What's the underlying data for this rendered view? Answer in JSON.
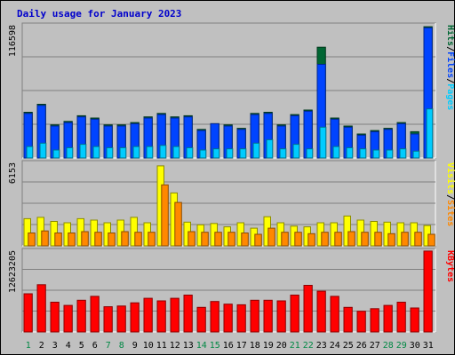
{
  "chart_data": {
    "type": "bar",
    "title": "Daily usage for January 2023",
    "categories": [
      "1",
      "2",
      "3",
      "4",
      "5",
      "6",
      "7",
      "8",
      "9",
      "10",
      "11",
      "12",
      "13",
      "14",
      "15",
      "16",
      "17",
      "18",
      "19",
      "20",
      "21",
      "22",
      "23",
      "24",
      "25",
      "26",
      "27",
      "28",
      "29",
      "30",
      "31"
    ],
    "weekend_days": [
      "1",
      "7",
      "8",
      "14",
      "15",
      "21",
      "22",
      "28",
      "29"
    ],
    "panels": [
      {
        "id": "hits-files-pages",
        "ymax": 116598,
        "ymax_label": "116598",
        "legend": [
          "Pages",
          "/",
          "Files",
          "/",
          "Hits"
        ],
        "series": [
          {
            "name": "Hits",
            "color": "#006633",
            "values": [
              40000,
              47000,
              29000,
              32000,
              37000,
              35000,
              29000,
              29000,
              31000,
              36000,
              39000,
              36000,
              37000,
              25000,
              30000,
              29000,
              26000,
              39000,
              40000,
              29000,
              38000,
              42000,
              97000,
              35000,
              28000,
              21000,
              24000,
              26000,
              31000,
              23000,
              115000
            ]
          },
          {
            "name": "Files",
            "color": "#0044ff",
            "values": [
              39000,
              46000,
              28000,
              31000,
              36000,
              34000,
              28000,
              28000,
              30000,
              35000,
              38000,
              35000,
              36000,
              24000,
              30000,
              28000,
              25000,
              38000,
              39000,
              28000,
              37000,
              41000,
              82000,
              34000,
              27000,
              20000,
              23000,
              25000,
              30000,
              21000,
              114000
            ]
          },
          {
            "name": "Pages",
            "color": "#00ccff",
            "values": [
              10000,
              13000,
              7000,
              9000,
              12000,
              10000,
              9000,
              9000,
              10000,
              10000,
              11000,
              10000,
              9000,
              7000,
              8000,
              8000,
              8000,
              13000,
              16000,
              8000,
              12000,
              8000,
              27000,
              10000,
              9000,
              8000,
              7000,
              7000,
              8000,
              6000,
              43000
            ]
          }
        ]
      },
      {
        "id": "visits-sites",
        "ymax": 6153,
        "ymax_label": "6153",
        "legend": [
          "Sites",
          "/",
          "Visits"
        ],
        "series": [
          {
            "name": "Visits",
            "color": "#ffff00",
            "values": [
              2000,
              2100,
              1800,
              1700,
              2000,
              1900,
              1700,
              1900,
              2100,
              1700,
              5900,
              3900,
              1750,
              1550,
              1650,
              1400,
              1700,
              1300,
              2150,
              1700,
              1450,
              1400,
              1700,
              1700,
              2200,
              1900,
              1800,
              1750,
              1700,
              1700,
              1500
            ]
          },
          {
            "name": "Sites",
            "color": "#ff8800",
            "values": [
              950,
              1100,
              950,
              950,
              1050,
              1000,
              950,
              1050,
              1000,
              1000,
              4500,
              3200,
              1050,
              1000,
              1000,
              1000,
              950,
              850,
              1300,
              1000,
              1000,
              900,
              1000,
              1000,
              1050,
              1000,
              1000,
              900,
              1000,
              1000,
              850
            ]
          }
        ]
      },
      {
        "id": "kbytes",
        "ymax": 12623205,
        "ymax_label": "12623205",
        "legend": [
          "KBytes"
        ],
        "series": [
          {
            "name": "KBytes",
            "color": "#ff0000",
            "values": [
              5900000,
              7300000,
              4600000,
              4100000,
              4900000,
              5500000,
              3900000,
              4000000,
              4500000,
              5200000,
              4800000,
              5200000,
              5700000,
              3800000,
              4700000,
              4300000,
              4200000,
              4900000,
              4900000,
              4800000,
              5700000,
              7200000,
              6300000,
              5500000,
              3800000,
              3200000,
              3600000,
              4100000,
              4600000,
              3700000,
              12500000
            ]
          }
        ]
      }
    ]
  }
}
